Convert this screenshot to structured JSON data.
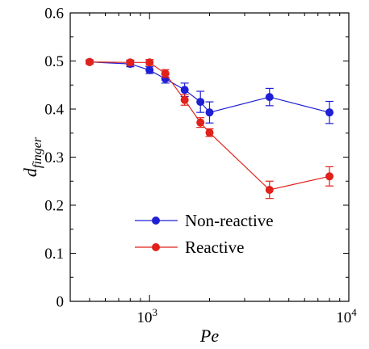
{
  "chart_data": {
    "type": "line",
    "xlabel": "Pe",
    "ylabel": {
      "main": "d",
      "subscript": "finger"
    },
    "xscale": "log",
    "xlim": [
      400,
      10000
    ],
    "ylim": [
      0,
      0.6
    ],
    "yticks": [
      {
        "value": 0,
        "label": "0"
      },
      {
        "value": 0.1,
        "label": "0.1"
      },
      {
        "value": 0.2,
        "label": "0.2"
      },
      {
        "value": 0.3,
        "label": "0.3"
      },
      {
        "value": 0.4,
        "label": "0.4"
      },
      {
        "value": 0.5,
        "label": "0.5"
      },
      {
        "value": 0.6,
        "label": "0.6"
      }
    ],
    "xticks": [
      {
        "value": 1000,
        "base": "10",
        "exp": "3"
      },
      {
        "value": 10000,
        "base": "10",
        "exp": "4"
      }
    ],
    "grid": false,
    "legend_position": "bottom-left",
    "series": [
      {
        "name": "Non-reactive",
        "color": "#1f1fd6",
        "x": [
          500,
          800,
          1000,
          1200,
          1500,
          1800,
          2000,
          4000,
          8000
        ],
        "y": [
          0.498,
          0.494,
          0.481,
          0.463,
          0.44,
          0.415,
          0.393,
          0.425,
          0.393
        ],
        "err": [
          0.004,
          0.006,
          0.007,
          0.009,
          0.014,
          0.022,
          0.022,
          0.018,
          0.023
        ]
      },
      {
        "name": "Reactive",
        "color": "#e0221b",
        "x": [
          500,
          800,
          1000,
          1200,
          1500,
          1800,
          2000,
          4000,
          8000
        ],
        "y": [
          0.498,
          0.497,
          0.497,
          0.474,
          0.419,
          0.372,
          0.351,
          0.232,
          0.26
        ],
        "err": [
          0.004,
          0.005,
          0.006,
          0.008,
          0.011,
          0.01,
          0.008,
          0.018,
          0.02
        ]
      }
    ]
  }
}
